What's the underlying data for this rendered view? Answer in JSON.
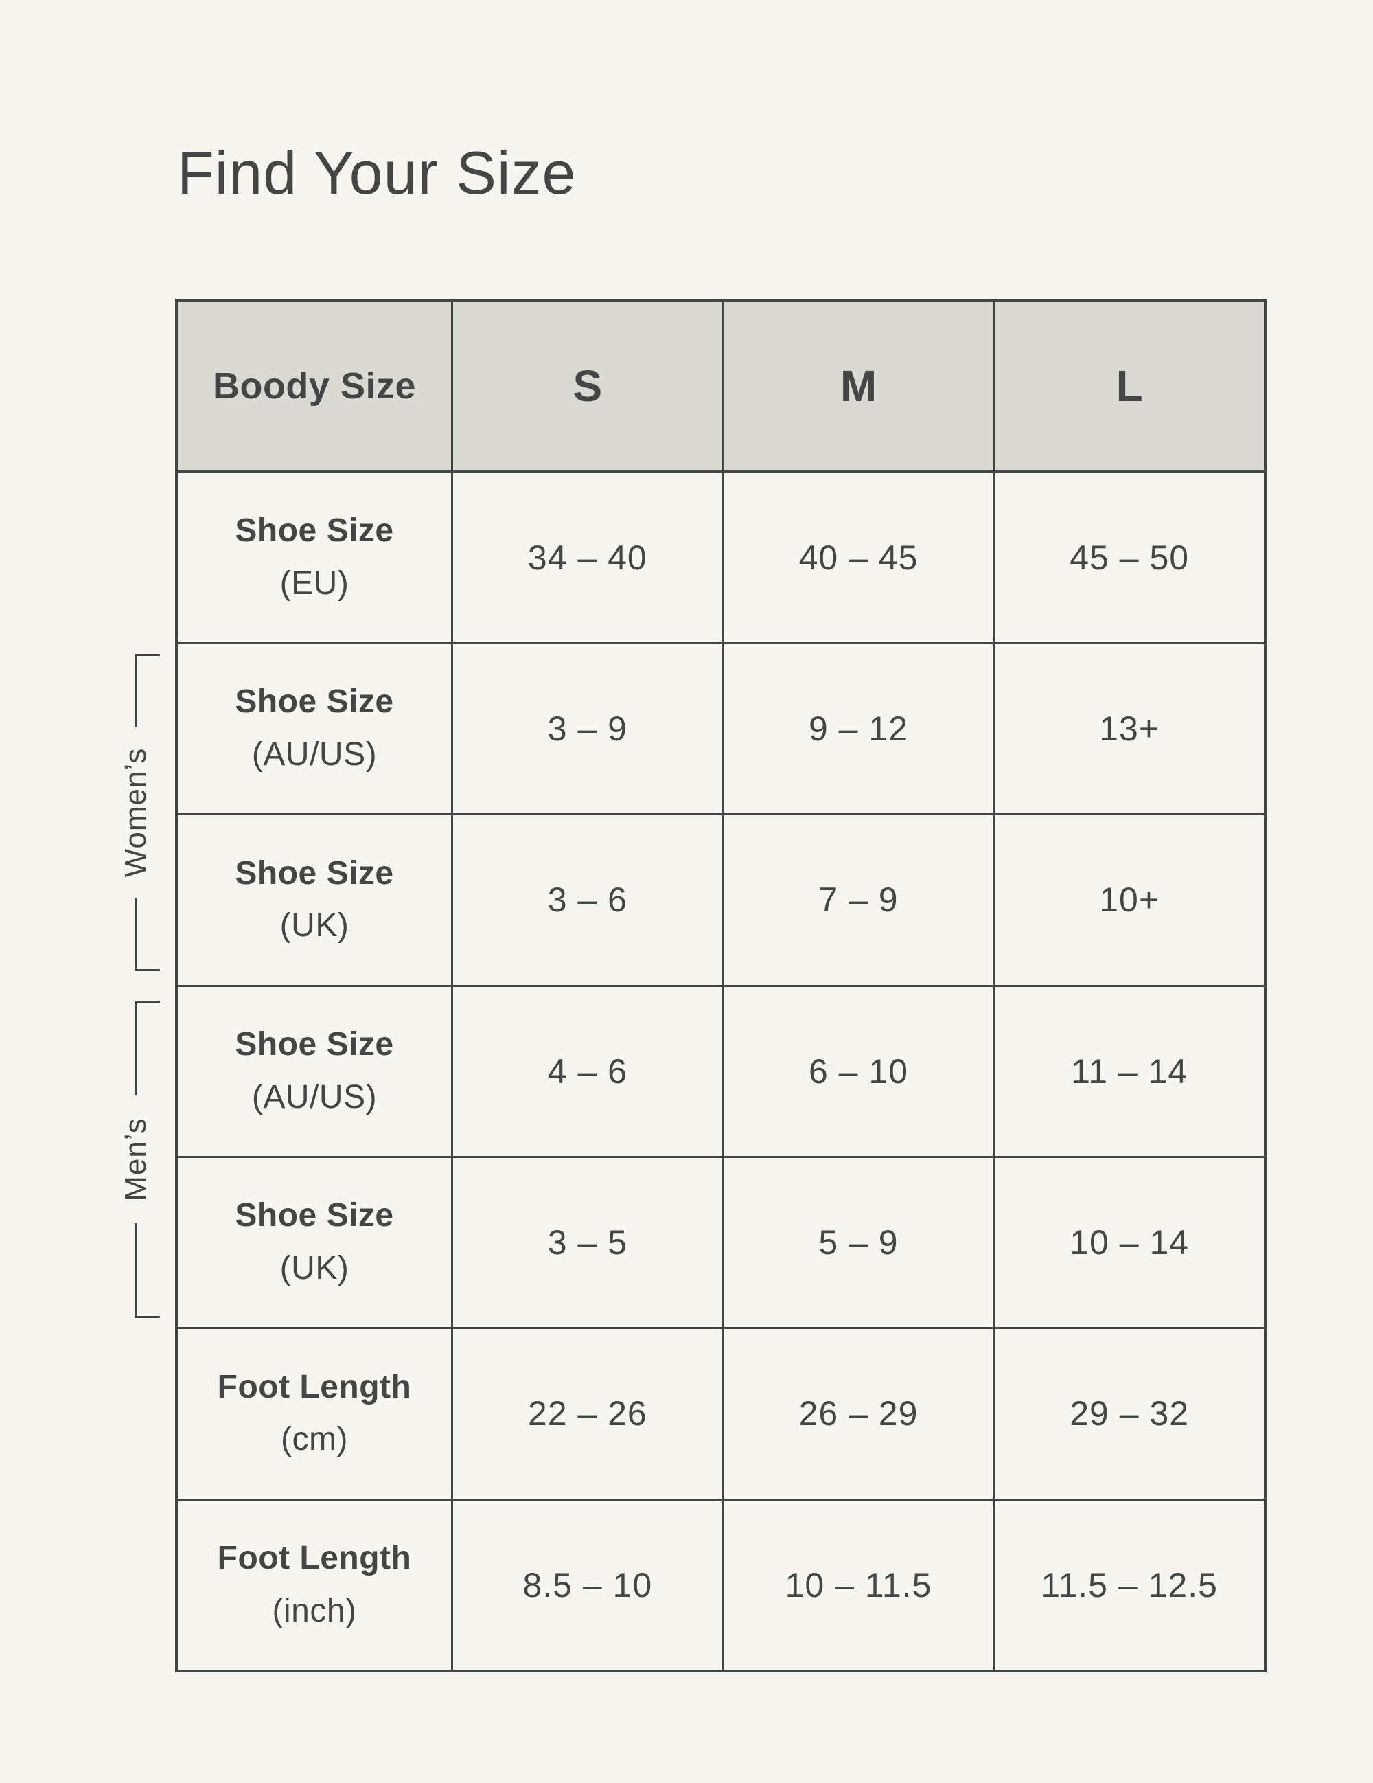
{
  "page": {
    "title": "Find Your Size"
  },
  "colors": {
    "background": "#f6f5ef",
    "header_background": "#dbdad2",
    "border": "#454545",
    "text": "#454545"
  },
  "side_groups": {
    "womens": {
      "label": "Women’s"
    },
    "mens": {
      "label": "Men’s"
    }
  },
  "table": {
    "header": {
      "col0": "Boody Size",
      "col1": "S",
      "col2": "M",
      "col3": "L"
    },
    "rows": [
      {
        "label": "Shoe Size",
        "unit": "(EU)",
        "s": "34 – 40",
        "m": "40 – 45",
        "l": "45 – 50"
      },
      {
        "label": "Shoe Size",
        "unit": "(AU/US)",
        "s": "3 – 9",
        "m": "9 – 12",
        "l": "13+"
      },
      {
        "label": "Shoe Size",
        "unit": "(UK)",
        "s": "3 – 6",
        "m": "7 – 9",
        "l": "10+"
      },
      {
        "label": "Shoe Size",
        "unit": "(AU/US)",
        "s": "4 – 6",
        "m": "6 – 10",
        "l": "11 – 14"
      },
      {
        "label": "Shoe Size",
        "unit": "(UK)",
        "s": "3 – 5",
        "m": "5 – 9",
        "l": "10 – 14"
      },
      {
        "label": "Foot Length",
        "unit": "(cm)",
        "s": "22 – 26",
        "m": "26 – 29",
        "l": "29 – 32"
      },
      {
        "label": "Foot Length",
        "unit": "(inch)",
        "s": "8.5 – 10",
        "m": "10 – 11.5",
        "l": "11.5 – 12.5"
      }
    ]
  },
  "chart_data": {
    "type": "table",
    "title": "Find Your Size",
    "columns": [
      "Boody Size",
      "S",
      "M",
      "L"
    ],
    "rows": [
      {
        "group": "",
        "label": "Shoe Size (EU)",
        "S": "34 – 40",
        "M": "40 – 45",
        "L": "45 – 50"
      },
      {
        "group": "Women’s",
        "label": "Shoe Size (AU/US)",
        "S": "3 – 9",
        "M": "9 – 12",
        "L": "13+"
      },
      {
        "group": "Women’s",
        "label": "Shoe Size (UK)",
        "S": "3 – 6",
        "M": "7 – 9",
        "L": "10+"
      },
      {
        "group": "Men’s",
        "label": "Shoe Size (AU/US)",
        "S": "4 – 6",
        "M": "6 – 10",
        "L": "11 – 14"
      },
      {
        "group": "Men’s",
        "label": "Shoe Size (UK)",
        "S": "3 – 5",
        "M": "5 – 9",
        "L": "10 – 14"
      },
      {
        "group": "",
        "label": "Foot Length (cm)",
        "S": "22 – 26",
        "M": "26 – 29",
        "L": "29 – 32"
      },
      {
        "group": "",
        "label": "Foot Length (inch)",
        "S": "8.5 – 10",
        "M": "10 – 11.5",
        "L": "11.5 – 12.5"
      }
    ]
  }
}
